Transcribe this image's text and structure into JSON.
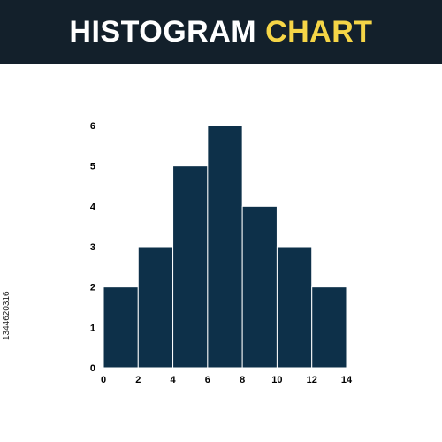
{
  "header": {
    "title_primary": "HISTOGRAM",
    "title_accent": "CHART",
    "background_color": "#13202b",
    "primary_color": "#ffffff",
    "accent_color": "#f5d547"
  },
  "watermark": {
    "stock_id": "1344620316"
  },
  "chart_data": {
    "type": "bar",
    "title": "HISTOGRAM CHART",
    "bins": [
      [
        0,
        2
      ],
      [
        2,
        4
      ],
      [
        4,
        6
      ],
      [
        6,
        8
      ],
      [
        8,
        10
      ],
      [
        10,
        12
      ],
      [
        12,
        14
      ]
    ],
    "values": [
      2,
      3,
      5,
      6,
      4,
      3,
      2
    ],
    "x_ticks": [
      0,
      2,
      4,
      6,
      8,
      10,
      12,
      14
    ],
    "y_ticks": [
      0,
      1,
      2,
      3,
      4,
      5,
      6
    ],
    "xlim": [
      0,
      14
    ],
    "ylim": [
      0,
      6
    ],
    "xlabel": "",
    "ylabel": "",
    "grid": false,
    "bar_color": "#0d3049",
    "bar_edge_color": "#ffffff"
  }
}
